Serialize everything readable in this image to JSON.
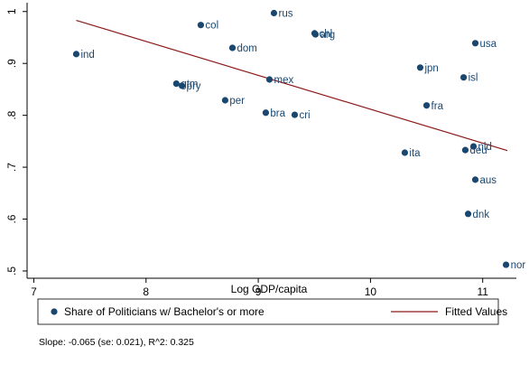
{
  "chart_data": {
    "type": "scatter",
    "x_label": "Log GDP/capita",
    "xlim": [
      6.94,
      11.3
    ],
    "xticks": [
      7,
      8,
      9,
      10,
      11
    ],
    "ylim": [
      0.486,
      1.017
    ],
    "yticks": [
      {
        "value": 1,
        "label": "1"
      },
      {
        "value": 0.9,
        "label": ".9"
      },
      {
        "value": 0.8,
        "label": ".8"
      },
      {
        "value": 0.7,
        "label": ".7"
      },
      {
        "value": 0.6,
        "label": ".6"
      },
      {
        "value": 0.5,
        "label": ".5"
      }
    ],
    "legend": "bottom",
    "note": "Slope: -0.065 (se: 0.021), R^2: 0.325",
    "series": [
      {
        "name": "Share of Politicians w/ Bachelor's or more",
        "color": "#1a476f",
        "labels": [
          "ind",
          "col",
          "rus",
          "chl",
          "arg",
          "usa",
          "dom",
          "jpn",
          "isl",
          "mex",
          "gtm",
          "pry",
          "per",
          "fra",
          "bra",
          "cri",
          "ita",
          "nld",
          "deu",
          "aus",
          "dnk",
          "nor"
        ],
        "x": [
          7.378,
          8.488,
          9.14,
          9.502,
          9.51,
          10.934,
          8.77,
          10.443,
          10.83,
          9.1,
          8.27,
          8.32,
          8.705,
          10.5,
          9.067,
          9.325,
          10.306,
          10.918,
          10.845,
          10.934,
          10.87,
          11.208
        ],
        "values": [
          0.918,
          0.974,
          0.997,
          0.958,
          0.956,
          0.939,
          0.93,
          0.892,
          0.873,
          0.869,
          0.861,
          0.857,
          0.829,
          0.819,
          0.805,
          0.801,
          0.728,
          0.74,
          0.733,
          0.676,
          0.61,
          0.512
        ]
      },
      {
        "name": "Fitted Values",
        "color": "#8b1a1a",
        "type": "line",
        "x": [
          7.378,
          11.22
        ],
        "values": [
          0.983,
          0.732
        ]
      }
    ]
  }
}
